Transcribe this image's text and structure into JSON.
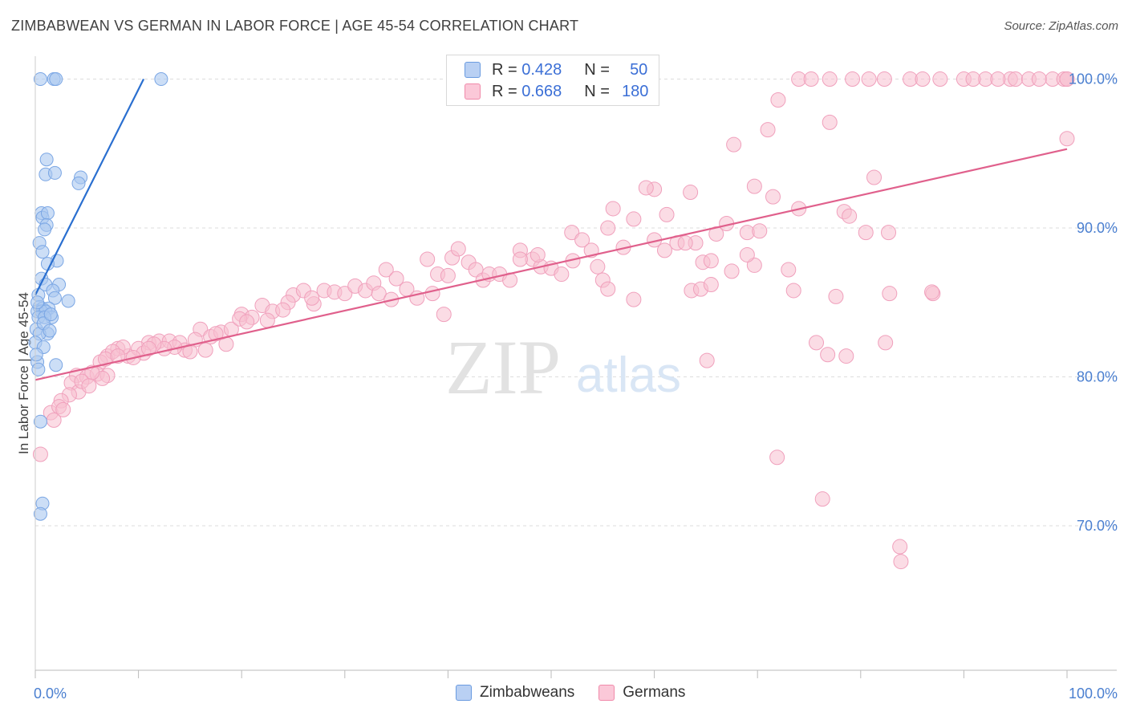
{
  "header": {
    "title": "ZIMBABWEAN VS GERMAN IN LABOR FORCE | AGE 45-54 CORRELATION CHART",
    "source": "Source: ZipAtlas.com"
  },
  "watermark": {
    "zip": "ZIP",
    "atlas": "atlas"
  },
  "legend": {
    "rows": [
      {
        "r_label": "R =",
        "r_value": "0.428",
        "n_label": "N =",
        "n_value": "50",
        "color": "#6a9be0",
        "fill": "#b9d0f3"
      },
      {
        "r_label": "R =",
        "r_value": "0.668",
        "n_label": "N =",
        "n_value": "180",
        "color": "#f08aaa",
        "fill": "#fbc8d8"
      }
    ]
  },
  "bottom_legend": {
    "items": [
      "Zimbabweans",
      "Germans"
    ]
  },
  "colors": {
    "blue_line": "#2a6fd0",
    "pink_line": "#e0608c",
    "blue_fill": "#aac8f0",
    "pink_fill": "#f7bfd0",
    "tick_text": "#4a7fd0"
  },
  "chart_data": {
    "type": "scatter",
    "title": "ZIMBABWEAN VS GERMAN IN LABOR FORCE | AGE 45-54 CORRELATION CHART",
    "xlabel": "",
    "ylabel": "In Labor Force | Age 45-54",
    "xlim": [
      0,
      100
    ],
    "ylim": [
      60.3,
      101.0
    ],
    "x_tick_labels": [
      "0.0%",
      "100.0%"
    ],
    "y_ticks": [
      70,
      80,
      90,
      100
    ],
    "y_tick_labels": [
      "70.0%",
      "80.0%",
      "90.0%",
      "100.0%"
    ],
    "series": [
      {
        "name": "Zimbabweans",
        "r": 0.428,
        "n": 50,
        "trend": {
          "x": [
            0.0,
            10.5
          ],
          "y": [
            85.5,
            100.0
          ]
        },
        "points": [
          [
            0.5,
            100
          ],
          [
            1.8,
            100
          ],
          [
            2.0,
            100
          ],
          [
            12.2,
            100
          ],
          [
            1.1,
            94.6
          ],
          [
            1.0,
            93.6
          ],
          [
            1.9,
            93.7
          ],
          [
            4.4,
            93.4
          ],
          [
            4.2,
            93.0
          ],
          [
            0.6,
            91.0
          ],
          [
            0.7,
            90.7
          ],
          [
            1.2,
            91.0
          ],
          [
            1.1,
            90.2
          ],
          [
            0.9,
            89.9
          ],
          [
            0.4,
            89.0
          ],
          [
            0.7,
            88.4
          ],
          [
            2.1,
            87.8
          ],
          [
            1.2,
            87.6
          ],
          [
            0.6,
            86.6
          ],
          [
            1.0,
            86.2
          ],
          [
            2.3,
            86.2
          ],
          [
            1.7,
            85.8
          ],
          [
            0.3,
            85.5
          ],
          [
            1.9,
            85.3
          ],
          [
            3.2,
            85.1
          ],
          [
            0.4,
            84.7
          ],
          [
            0.7,
            84.6
          ],
          [
            1.3,
            84.6
          ],
          [
            0.2,
            84.4
          ],
          [
            0.6,
            84.4
          ],
          [
            1.0,
            84.4
          ],
          [
            1.6,
            84.0
          ],
          [
            0.3,
            84.0
          ],
          [
            0.9,
            84.0
          ],
          [
            0.1,
            83.2
          ],
          [
            1.2,
            82.9
          ],
          [
            0.4,
            82.9
          ],
          [
            0.0,
            82.3
          ],
          [
            0.2,
            81.0
          ],
          [
            0.3,
            80.5
          ],
          [
            2.0,
            80.8
          ],
          [
            0.5,
            77.0
          ],
          [
            0.7,
            71.5
          ],
          [
            0.5,
            70.8
          ],
          [
            0.8,
            83.6
          ],
          [
            0.2,
            85.0
          ],
          [
            1.5,
            84.2
          ],
          [
            0.8,
            82.0
          ],
          [
            0.1,
            81.5
          ],
          [
            1.4,
            83.1
          ]
        ]
      },
      {
        "name": "Germans",
        "r": 0.668,
        "n": 180,
        "trend": {
          "x": [
            0.0,
            100.0
          ],
          "y": [
            79.8,
            95.3
          ]
        },
        "points": [
          [
            74.0,
            100
          ],
          [
            75.2,
            100
          ],
          [
            77.0,
            100
          ],
          [
            79.2,
            100
          ],
          [
            80.8,
            100
          ],
          [
            82.3,
            100
          ],
          [
            84.8,
            100
          ],
          [
            86.0,
            100
          ],
          [
            87.7,
            100
          ],
          [
            90.0,
            100
          ],
          [
            92.1,
            100
          ],
          [
            94.5,
            100
          ],
          [
            95.0,
            100
          ],
          [
            96.3,
            100
          ],
          [
            98.6,
            100
          ],
          [
            99.7,
            100
          ],
          [
            100,
            100
          ],
          [
            100,
            100
          ],
          [
            90.9,
            100
          ],
          [
            93.3,
            100
          ],
          [
            97.3,
            100
          ],
          [
            72.0,
            98.6
          ],
          [
            77.0,
            97.1
          ],
          [
            71.0,
            96.6
          ],
          [
            67.7,
            95.6
          ],
          [
            100,
            96.0
          ],
          [
            60.0,
            92.6
          ],
          [
            59.2,
            92.7
          ],
          [
            63.5,
            92.4
          ],
          [
            69.7,
            92.8
          ],
          [
            71.5,
            92.1
          ],
          [
            81.3,
            93.4
          ],
          [
            56.0,
            91.3
          ],
          [
            58.0,
            90.6
          ],
          [
            61.2,
            90.9
          ],
          [
            66.0,
            89.6
          ],
          [
            67.0,
            90.3
          ],
          [
            69.0,
            89.7
          ],
          [
            70.2,
            89.8
          ],
          [
            74.0,
            91.3
          ],
          [
            78.4,
            91.1
          ],
          [
            78.9,
            90.8
          ],
          [
            80.5,
            89.7
          ],
          [
            82.7,
            89.7
          ],
          [
            52.0,
            89.7
          ],
          [
            53.0,
            89.2
          ],
          [
            55.5,
            90.0
          ],
          [
            57.0,
            88.7
          ],
          [
            60.0,
            89.2
          ],
          [
            62.2,
            89.0
          ],
          [
            64.0,
            89.0
          ],
          [
            61.0,
            88.5
          ],
          [
            63.0,
            89.0
          ],
          [
            64.7,
            87.7
          ],
          [
            65.5,
            87.8
          ],
          [
            67.5,
            87.1
          ],
          [
            69.7,
            87.5
          ],
          [
            69.0,
            88.2
          ],
          [
            47.0,
            88.5
          ],
          [
            48.2,
            87.9
          ],
          [
            49.0,
            87.4
          ],
          [
            50.0,
            87.3
          ],
          [
            51.0,
            86.9
          ],
          [
            52.1,
            87.8
          ],
          [
            53.9,
            88.5
          ],
          [
            54.5,
            87.4
          ],
          [
            55.0,
            86.5
          ],
          [
            55.5,
            85.9
          ],
          [
            58.0,
            85.2
          ],
          [
            63.6,
            85.8
          ],
          [
            64.5,
            85.9
          ],
          [
            65.5,
            86.2
          ],
          [
            73.0,
            87.2
          ],
          [
            73.5,
            85.8
          ],
          [
            77.6,
            85.4
          ],
          [
            82.8,
            85.6
          ],
          [
            87.0,
            85.6
          ],
          [
            40.4,
            88.0
          ],
          [
            41.0,
            88.6
          ],
          [
            42.0,
            87.7
          ],
          [
            42.7,
            87.2
          ],
          [
            43.4,
            86.5
          ],
          [
            44.0,
            86.9
          ],
          [
            45.0,
            86.9
          ],
          [
            46.0,
            86.5
          ],
          [
            47.0,
            87.9
          ],
          [
            48.7,
            88.2
          ],
          [
            38.0,
            87.9
          ],
          [
            39.0,
            86.9
          ],
          [
            40.0,
            86.8
          ],
          [
            34.0,
            87.2
          ],
          [
            35.0,
            86.6
          ],
          [
            36.0,
            85.9
          ],
          [
            37.0,
            85.3
          ],
          [
            38.5,
            85.6
          ],
          [
            39.6,
            84.2
          ],
          [
            28.0,
            85.8
          ],
          [
            29.0,
            85.7
          ],
          [
            30.0,
            85.6
          ],
          [
            31.0,
            86.1
          ],
          [
            32.0,
            85.8
          ],
          [
            32.8,
            86.3
          ],
          [
            33.3,
            85.6
          ],
          [
            34.5,
            85.2
          ],
          [
            25.0,
            85.5
          ],
          [
            26.0,
            85.8
          ],
          [
            27.0,
            84.9
          ],
          [
            24.5,
            85.0
          ],
          [
            20.0,
            84.2
          ],
          [
            21.0,
            84.0
          ],
          [
            22.0,
            84.8
          ],
          [
            23.0,
            84.4
          ],
          [
            24.0,
            84.5
          ],
          [
            22.5,
            83.8
          ],
          [
            26.8,
            85.3
          ],
          [
            16.0,
            83.2
          ],
          [
            17.0,
            82.7
          ],
          [
            18.0,
            83.0
          ],
          [
            19.0,
            83.2
          ],
          [
            19.8,
            83.9
          ],
          [
            20.5,
            83.7
          ],
          [
            15.5,
            82.5
          ],
          [
            11.0,
            82.3
          ],
          [
            12.0,
            82.4
          ],
          [
            13.0,
            82.4
          ],
          [
            14.0,
            82.3
          ],
          [
            14.5,
            81.8
          ],
          [
            15.0,
            81.7
          ],
          [
            16.5,
            81.8
          ],
          [
            17.5,
            82.9
          ],
          [
            18.5,
            82.2
          ],
          [
            13.5,
            82.0
          ],
          [
            12.5,
            81.9
          ],
          [
            7.0,
            81.4
          ],
          [
            8.0,
            81.9
          ],
          [
            9.0,
            81.4
          ],
          [
            10.0,
            81.9
          ],
          [
            11.5,
            82.2
          ],
          [
            10.5,
            81.6
          ],
          [
            8.5,
            82.0
          ],
          [
            6.3,
            81.0
          ],
          [
            7.5,
            81.7
          ],
          [
            9.5,
            81.3
          ],
          [
            11.0,
            81.9
          ],
          [
            6.8,
            81.2
          ],
          [
            4.0,
            80.1
          ],
          [
            5.0,
            80.0
          ],
          [
            6.0,
            80.2
          ],
          [
            7.0,
            80.1
          ],
          [
            8.0,
            81.4
          ],
          [
            6.5,
            79.9
          ],
          [
            5.5,
            80.3
          ],
          [
            3.5,
            79.6
          ],
          [
            4.2,
            79.0
          ],
          [
            4.5,
            79.7
          ],
          [
            5.2,
            79.4
          ],
          [
            3.3,
            78.8
          ],
          [
            2.5,
            78.4
          ],
          [
            1.5,
            77.6
          ],
          [
            1.8,
            77.1
          ],
          [
            2.3,
            78.0
          ],
          [
            2.7,
            77.8
          ],
          [
            0.5,
            74.8
          ],
          [
            65.1,
            81.1
          ],
          [
            75.7,
            82.3
          ],
          [
            76.8,
            81.5
          ],
          [
            82.4,
            82.3
          ],
          [
            78.6,
            81.4
          ],
          [
            71.9,
            74.6
          ],
          [
            76.3,
            71.8
          ],
          [
            83.8,
            68.6
          ],
          [
            83.9,
            67.6
          ],
          [
            86.9,
            85.7
          ]
        ]
      }
    ]
  }
}
